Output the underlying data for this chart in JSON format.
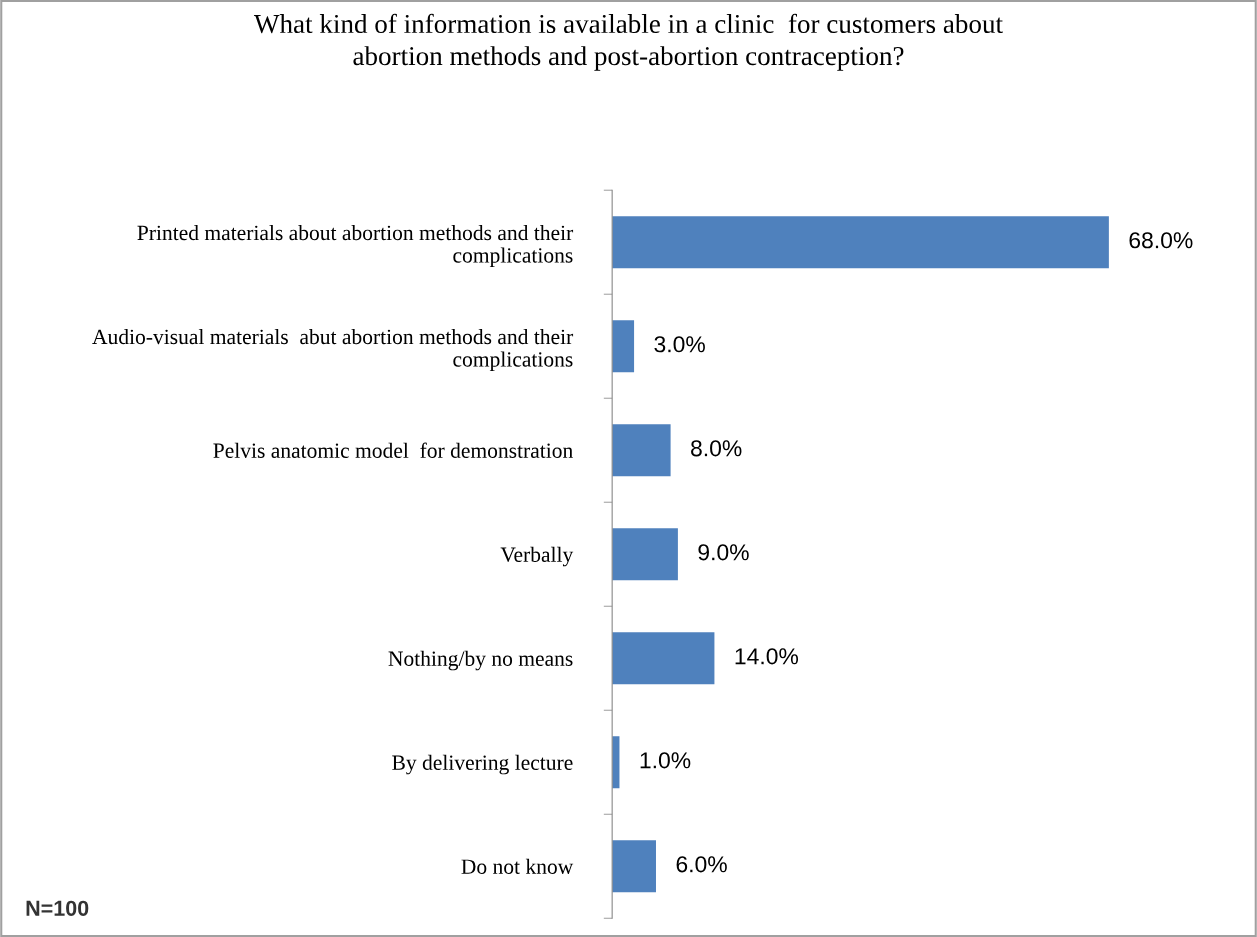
{
  "chart_data": {
    "type": "bar",
    "orientation": "horizontal",
    "title": "What kind of information is available in a clinic  for customers about\nabortion methods and post-abortion contraception?",
    "categories": [
      "Printed materials about abortion methods and their\ncomplications",
      "Audio-visual materials  abut abortion methods and their\ncomplications",
      "Pelvis anatomic model  for demonstration",
      "Verbally",
      "Nothing/by no means",
      "By delivering lecture",
      "Do not know"
    ],
    "values": [
      68,
      3,
      8,
      9,
      14,
      1,
      6
    ],
    "value_labels": [
      "68.0%",
      "3.0%",
      "8.0%",
      "9.0%",
      "14.0%",
      "1.0%",
      "6.0%"
    ],
    "color": "#4f81bd",
    "annotations": [
      "N=100"
    ],
    "grid": false,
    "legend": false
  }
}
